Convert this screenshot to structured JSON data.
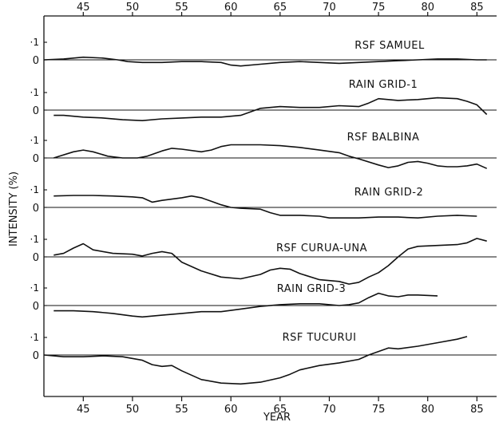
{
  "chart_data": {
    "type": "line",
    "title": "",
    "xlabel": "YEAR",
    "ylabel": "INTENSITY (%)",
    "xlim": [
      41,
      87
    ],
    "x_ticks": [
      45,
      50,
      55,
      60,
      65,
      70,
      75,
      80,
      85
    ],
    "x_tick_labels": [
      "45",
      "50",
      "55",
      "60",
      "65",
      "70",
      "75",
      "80",
      "85"
    ],
    "panel_y_tick_labels": [
      "·1",
      "0"
    ],
    "panel_ylim": [
      -0.1,
      0.1
    ],
    "grid": false,
    "legend": "none",
    "line_color": "#111111",
    "series": [
      {
        "name": "RSF SAMUEL",
        "x": [
          41,
          43,
          45,
          47,
          48.5,
          49.5,
          51,
          53,
          55,
          57,
          59,
          60,
          61,
          63,
          65,
          67,
          69,
          71,
          73,
          75,
          77,
          79,
          81,
          83,
          85,
          86
        ],
        "y": [
          0.0,
          0.005,
          0.015,
          0.01,
          0.0,
          -0.01,
          -0.015,
          -0.015,
          -0.01,
          -0.01,
          -0.015,
          -0.03,
          -0.035,
          -0.025,
          -0.015,
          -0.01,
          -0.015,
          -0.02,
          -0.015,
          -0.01,
          -0.005,
          0.0,
          0.005,
          0.005,
          0.0,
          0.0
        ]
      },
      {
        "name": "RAIN GRID-1",
        "x": [
          42,
          43,
          44,
          45,
          47,
          49,
          51,
          53,
          55,
          57,
          59,
          61,
          62,
          63,
          65,
          67,
          69,
          71,
          73,
          74,
          75,
          77,
          79,
          81,
          83,
          84,
          85,
          86
        ],
        "y": [
          -0.03,
          -0.03,
          -0.035,
          -0.04,
          -0.045,
          -0.055,
          -0.06,
          -0.05,
          -0.045,
          -0.04,
          -0.04,
          -0.03,
          -0.01,
          0.01,
          0.02,
          0.015,
          0.015,
          0.025,
          0.02,
          0.04,
          0.065,
          0.055,
          0.06,
          0.07,
          0.065,
          0.05,
          0.03,
          -0.025
        ]
      },
      {
        "name": "RSF BALBINA",
        "x": [
          42,
          44,
          45,
          46,
          47.5,
          49,
          50.5,
          51.5,
          53,
          54,
          55,
          57,
          58,
          59,
          60,
          61,
          63,
          65,
          67,
          69,
          71,
          72,
          73,
          75,
          76,
          77,
          78,
          79,
          80,
          81,
          82,
          83,
          84,
          85,
          86
        ],
        "y": [
          0.0,
          0.035,
          0.045,
          0.035,
          0.01,
          0.0,
          0.0,
          0.01,
          0.04,
          0.055,
          0.05,
          0.035,
          0.045,
          0.065,
          0.075,
          0.075,
          0.075,
          0.07,
          0.06,
          0.045,
          0.03,
          0.01,
          -0.005,
          -0.04,
          -0.055,
          -0.045,
          -0.025,
          -0.02,
          -0.03,
          -0.045,
          -0.05,
          -0.05,
          -0.045,
          -0.035,
          -0.06
        ]
      },
      {
        "name": "RAIN GRID-2",
        "x": [
          42,
          44,
          46,
          48,
          50,
          51,
          52,
          53,
          55,
          56,
          57,
          58,
          59,
          60,
          61,
          63,
          64,
          65,
          67,
          69,
          70,
          71,
          73,
          75,
          77,
          79,
          81,
          83,
          85
        ],
        "y": [
          0.065,
          0.068,
          0.068,
          0.065,
          0.06,
          0.055,
          0.03,
          0.04,
          0.055,
          0.065,
          0.055,
          0.035,
          0.015,
          0.0,
          -0.005,
          -0.01,
          -0.03,
          -0.045,
          -0.045,
          -0.05,
          -0.06,
          -0.06,
          -0.06,
          -0.055,
          -0.055,
          -0.06,
          -0.05,
          -0.045,
          -0.05
        ]
      },
      {
        "name": "RSF CURUA-UNA",
        "x": [
          42,
          43,
          44,
          45,
          46,
          48,
          50,
          51,
          52,
          53,
          54,
          55,
          57,
          59,
          61,
          63,
          64,
          65,
          66,
          67,
          69,
          71,
          72,
          73,
          74,
          75,
          76,
          77,
          78,
          79,
          81,
          83,
          84,
          85,
          86
        ],
        "y": [
          0.01,
          0.02,
          0.05,
          0.075,
          0.04,
          0.02,
          0.015,
          0.005,
          0.02,
          0.03,
          0.02,
          -0.03,
          -0.08,
          -0.115,
          -0.125,
          -0.1,
          -0.075,
          -0.065,
          -0.07,
          -0.095,
          -0.13,
          -0.14,
          -0.155,
          -0.145,
          -0.115,
          -0.09,
          -0.05,
          0.0,
          0.045,
          0.06,
          0.065,
          0.07,
          0.08,
          0.105,
          0.09
        ]
      },
      {
        "name": "RAIN GRID-3",
        "x": [
          42,
          44,
          46,
          48,
          50,
          51,
          53,
          55,
          57,
          59,
          61,
          63,
          65,
          67,
          69,
          71,
          72,
          73,
          74,
          75,
          76,
          77,
          78,
          79,
          81
        ],
        "y": [
          -0.03,
          -0.03,
          -0.035,
          -0.045,
          -0.06,
          -0.065,
          -0.055,
          -0.045,
          -0.035,
          -0.035,
          -0.02,
          -0.005,
          0.005,
          0.01,
          0.01,
          0.0,
          0.005,
          0.015,
          0.045,
          0.07,
          0.055,
          0.05,
          0.06,
          0.06,
          0.055
        ]
      },
      {
        "name": "RSF TUCURUI",
        "x": [
          41,
          43,
          45,
          47,
          49,
          51,
          52,
          53,
          54,
          55,
          57,
          59,
          61,
          63,
          65,
          66,
          67,
          69,
          71,
          73,
          74,
          75,
          76,
          77,
          79,
          81,
          83,
          84
        ],
        "y": [
          0.0,
          -0.01,
          -0.01,
          -0.005,
          -0.01,
          -0.03,
          -0.055,
          -0.065,
          -0.06,
          -0.09,
          -0.14,
          -0.16,
          -0.165,
          -0.155,
          -0.13,
          -0.11,
          -0.085,
          -0.06,
          -0.045,
          -0.025,
          0.0,
          0.02,
          0.04,
          0.035,
          0.05,
          0.07,
          0.09,
          0.105
        ]
      }
    ]
  }
}
